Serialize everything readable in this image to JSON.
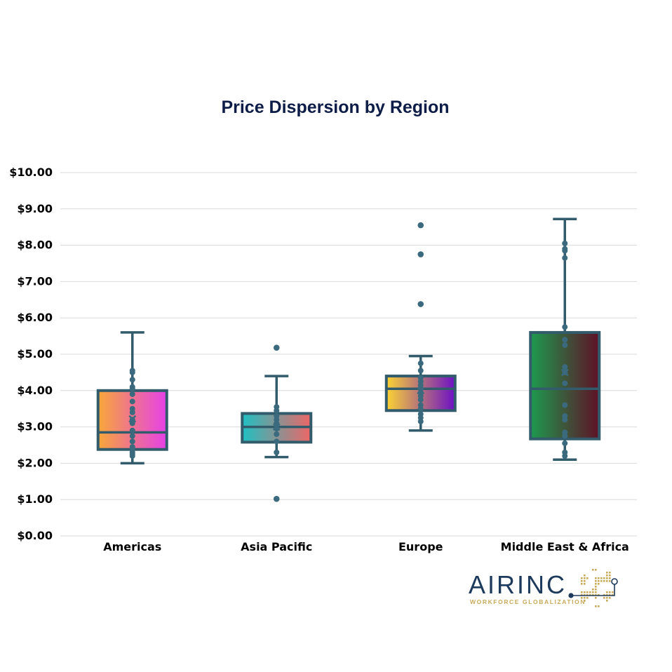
{
  "colors": {
    "title": "#0e1d47",
    "box_stroke": "#325b6c",
    "point": "#3b6a7e",
    "grid": "#d9d9d9",
    "logo_navy": "#1d3a5c",
    "logo_gold": "#c9a95a"
  },
  "logo": {
    "text": "AIRINC",
    "tagline": "WORKFORCE GLOBALIZATION",
    "icon": "globe-icon"
  },
  "chart_data": {
    "type": "box",
    "title": "Price Dispersion by Region",
    "xlabel": "",
    "ylabel": "",
    "ylim": [
      0,
      10
    ],
    "y_ticks": [
      0,
      1,
      2,
      3,
      4,
      5,
      6,
      7,
      8,
      9,
      10
    ],
    "y_tick_labels": [
      "$0.00",
      "$1.00",
      "$2.00",
      "$3.00",
      "$4.00",
      "$5.00",
      "$6.00",
      "$7.00",
      "$8.00",
      "$9.00",
      "$10.00"
    ],
    "grid": true,
    "legend": "none",
    "categories": [
      "Americas",
      "Asia Pacific",
      "Europe",
      "Middle East & Africa"
    ],
    "boxes": [
      {
        "category": "Americas",
        "min": 2.0,
        "q1": 2.38,
        "median": 2.85,
        "q3": 4.0,
        "max": 5.6,
        "mean": 3.22,
        "gradient": [
          "#f7a738",
          "#e640e8"
        ],
        "points": [
          2.2,
          2.25,
          2.3,
          2.4,
          2.45,
          2.6,
          2.75,
          2.9,
          3.1,
          3.2,
          3.4,
          3.5,
          3.7,
          3.9,
          4.05,
          4.1,
          4.3,
          4.5,
          4.55
        ],
        "outliers": []
      },
      {
        "category": "Asia Pacific",
        "min": 2.17,
        "q1": 2.58,
        "median": 3.0,
        "q3": 3.37,
        "max": 4.4,
        "mean": 3.0,
        "gradient": [
          "#1fc1c3",
          "#ee6666"
        ],
        "points": [
          2.3,
          2.6,
          2.8,
          2.95,
          3.05,
          3.1,
          3.2,
          3.3,
          3.45,
          3.55
        ],
        "outliers": [
          1.02,
          5.18
        ]
      },
      {
        "category": "Europe",
        "min": 2.9,
        "q1": 3.45,
        "median": 4.05,
        "q3": 4.4,
        "max": 4.95,
        "mean": 4.0,
        "gradient": [
          "#fbd233",
          "#6c10c6"
        ],
        "points": [
          3.15,
          3.25,
          3.35,
          3.5,
          3.6,
          3.75,
          3.85,
          3.95,
          4.05,
          4.15,
          4.25,
          4.35,
          4.55,
          4.75
        ],
        "outliers": [
          6.38,
          7.75,
          8.55
        ]
      },
      {
        "category": "Middle East & Africa",
        "min": 2.1,
        "q1": 2.67,
        "median": 4.05,
        "q3": 5.6,
        "max": 8.72,
        "mean": 4.5,
        "gradient": [
          "#1d9a4f",
          "#5f1126"
        ],
        "points": [
          2.2,
          2.3,
          2.55,
          2.75,
          2.85,
          3.2,
          3.3,
          3.6,
          4.2,
          4.5,
          4.65,
          5.25,
          5.4,
          5.75,
          7.65,
          7.85,
          7.9,
          8.05
        ],
        "outliers": []
      }
    ]
  }
}
